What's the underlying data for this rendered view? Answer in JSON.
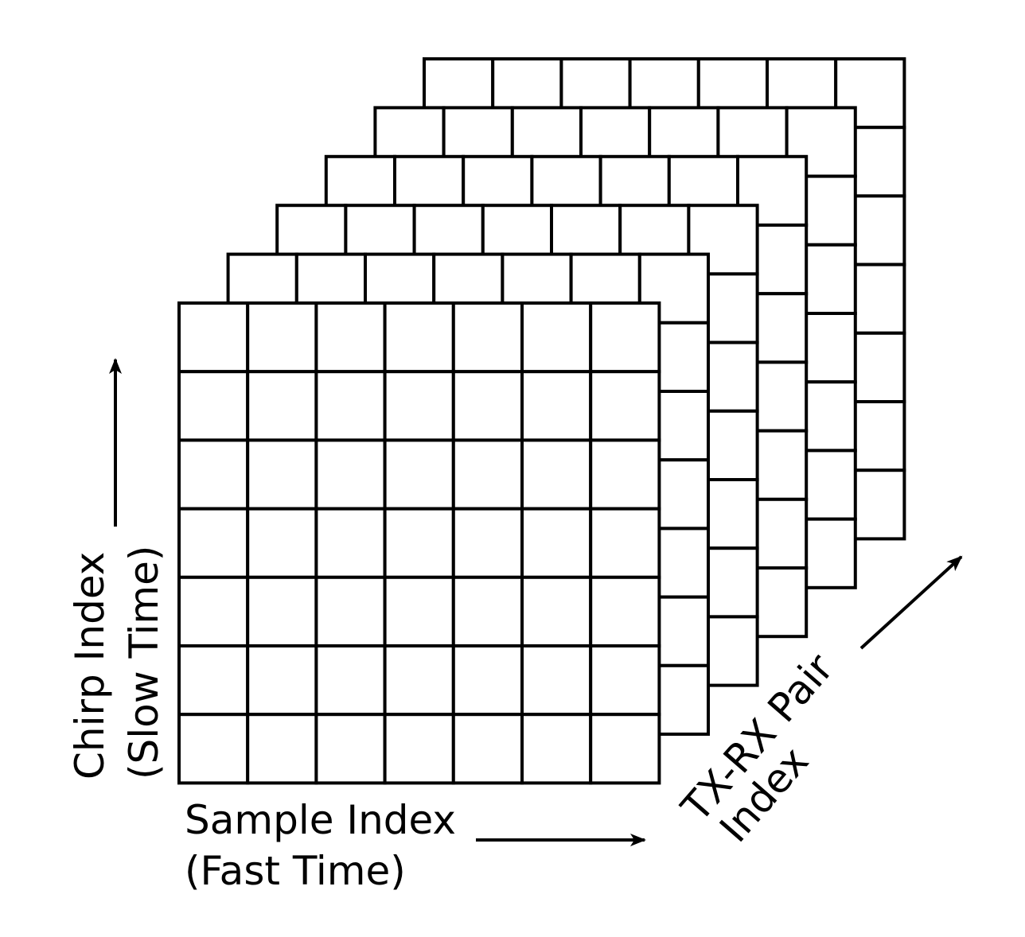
{
  "colors": {
    "stroke": "#000000",
    "background": "#ffffff",
    "cell_fill": "#ffffff"
  },
  "diagram": {
    "grid": {
      "rows": 7,
      "columns": 7,
      "layers": 6
    },
    "labels": {
      "chirp_line1": "Chirp Index",
      "chirp_line2": "(Slow Time)",
      "sample_line1": "Sample Index",
      "sample_line2": "(Fast Time)",
      "pair_line1": "TX-RX Pair",
      "pair_line2": "Index"
    }
  }
}
